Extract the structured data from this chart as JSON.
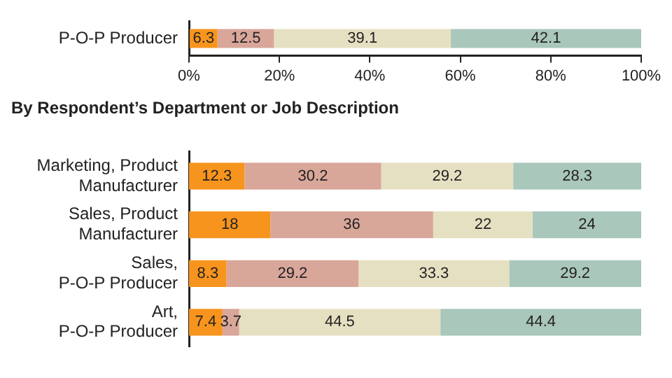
{
  "chart_data": [
    {
      "type": "bar",
      "orientation": "horizontal",
      "stacked": true,
      "data_labels": true,
      "grid": false,
      "legend": false,
      "categories": [
        "P-O-P Producer"
      ],
      "series": [
        {
          "color": "#f7941d",
          "values": [
            6.3
          ]
        },
        {
          "color": "#d9a69a",
          "values": [
            12.5
          ]
        },
        {
          "color": "#e6e0c2",
          "values": [
            39.1
          ]
        },
        {
          "color": "#a9c7bb",
          "values": [
            42.1
          ]
        }
      ],
      "xlim": [
        0,
        100
      ],
      "xticks": [
        {
          "value": 0,
          "label": "0%"
        },
        {
          "value": 20,
          "label": "20%"
        },
        {
          "value": 40,
          "label": "40%"
        },
        {
          "value": 60,
          "label": "60%"
        },
        {
          "value": 80,
          "label": "80%"
        },
        {
          "value": 100,
          "label": "100%"
        }
      ]
    },
    {
      "type": "bar",
      "orientation": "horizontal",
      "stacked": true,
      "data_labels": true,
      "grid": false,
      "legend": false,
      "tick_labels": "y",
      "title": "By Respondent’s Department or Job Description",
      "categories": [
        "Marketing, Product\nManufacturer",
        "Sales, Product\nManufacturer",
        "Sales,\nP-O-P Producer",
        "Art,\nP-O-P Producer"
      ],
      "series": [
        {
          "color": "#f7941d",
          "values": [
            12.3,
            18,
            8.3,
            7.4
          ]
        },
        {
          "color": "#d9a69a",
          "values": [
            30.2,
            36,
            29.2,
            3.7
          ]
        },
        {
          "color": "#e6e0c2",
          "values": [
            29.2,
            22,
            33.3,
            44.5
          ]
        },
        {
          "color": "#a9c7bb",
          "values": [
            28.3,
            24,
            29.2,
            44.4
          ]
        }
      ],
      "xlim": [
        0,
        100
      ]
    }
  ]
}
